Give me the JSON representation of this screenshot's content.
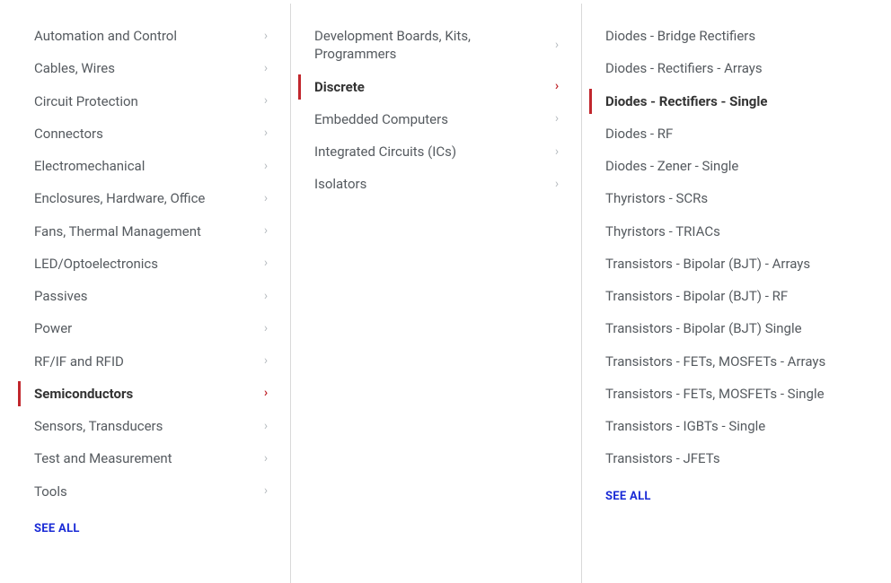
{
  "colors": {
    "text": "#555a5f",
    "text_active": "#333333",
    "chevron": "#b7bcc0",
    "accent": "#c1272d",
    "link": "#1a2bd6",
    "divider": "#d9d9d9",
    "background": "#ffffff"
  },
  "col1": {
    "items": [
      {
        "label": "Automation and Control",
        "has_children": true,
        "active": false
      },
      {
        "label": "Cables, Wires",
        "has_children": true,
        "active": false
      },
      {
        "label": "Circuit Protection",
        "has_children": true,
        "active": false
      },
      {
        "label": "Connectors",
        "has_children": true,
        "active": false
      },
      {
        "label": "Electromechanical",
        "has_children": true,
        "active": false
      },
      {
        "label": "Enclosures, Hardware, Office",
        "has_children": true,
        "active": false
      },
      {
        "label": "Fans, Thermal Management",
        "has_children": true,
        "active": false
      },
      {
        "label": "LED/Optoelectronics",
        "has_children": true,
        "active": false
      },
      {
        "label": "Passives",
        "has_children": true,
        "active": false
      },
      {
        "label": "Power",
        "has_children": true,
        "active": false
      },
      {
        "label": "RF/IF and RFID",
        "has_children": true,
        "active": false
      },
      {
        "label": "Semiconductors",
        "has_children": true,
        "active": true
      },
      {
        "label": "Sensors, Transducers",
        "has_children": true,
        "active": false
      },
      {
        "label": "Test and Measurement",
        "has_children": true,
        "active": false
      },
      {
        "label": "Tools",
        "has_children": true,
        "active": false
      }
    ],
    "see_all": "SEE ALL"
  },
  "col2": {
    "items": [
      {
        "label": "Development Boards, Kits, Programmers",
        "has_children": true,
        "active": false
      },
      {
        "label": "Discrete",
        "has_children": true,
        "active": true
      },
      {
        "label": "Embedded Computers",
        "has_children": true,
        "active": false
      },
      {
        "label": "Integrated Circuits (ICs)",
        "has_children": true,
        "active": false
      },
      {
        "label": "Isolators",
        "has_children": true,
        "active": false
      }
    ]
  },
  "col3": {
    "items": [
      {
        "label": "Diodes - Bridge Rectifiers",
        "active": false
      },
      {
        "label": "Diodes - Rectifiers - Arrays",
        "active": false
      },
      {
        "label": "Diodes - Rectifiers - Single",
        "active": true
      },
      {
        "label": "Diodes - RF",
        "active": false
      },
      {
        "label": "Diodes - Zener - Single",
        "active": false
      },
      {
        "label": "Thyristors - SCRs",
        "active": false
      },
      {
        "label": "Thyristors - TRIACs",
        "active": false
      },
      {
        "label": "Transistors - Bipolar (BJT) - Arrays",
        "active": false
      },
      {
        "label": "Transistors - Bipolar (BJT) - RF",
        "active": false
      },
      {
        "label": "Transistors - Bipolar (BJT) Single",
        "active": false
      },
      {
        "label": "Transistors - FETs, MOSFETs - Arrays",
        "active": false
      },
      {
        "label": "Transistors - FETs, MOSFETs - Single",
        "active": false
      },
      {
        "label": "Transistors - IGBTs - Single",
        "active": false
      },
      {
        "label": "Transistors - JFETs",
        "active": false
      }
    ],
    "see_all": "SEE ALL"
  }
}
